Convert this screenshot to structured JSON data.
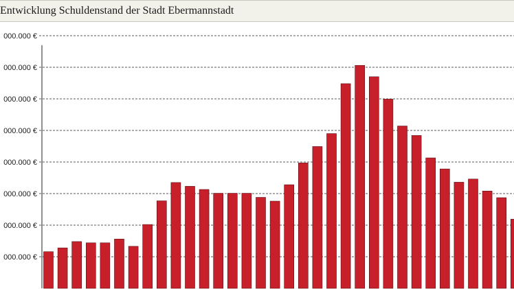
{
  "chart_data": {
    "type": "bar",
    "title": "Entwicklung Schuldenstand der Stadt Ebermannstadt",
    "xlabel": "",
    "ylabel": "",
    "y_tick_labels": [
      "000.000 €",
      "000.000 €",
      "000.000 €",
      "000.000 €",
      "000.000 €",
      "000.000 €",
      "000.000 €",
      "000.000 €"
    ],
    "ylim": [
      0,
      7.7
    ],
    "grid": true,
    "bar_color": "#c8202b",
    "values": [
      1.16,
      1.28,
      1.48,
      1.44,
      1.44,
      1.56,
      1.33,
      2.02,
      2.77,
      3.35,
      3.23,
      3.13,
      3.01,
      3.01,
      3.01,
      2.88,
      2.76,
      3.28,
      3.97,
      4.49,
      4.9,
      6.48,
      7.06,
      6.7,
      5.99,
      5.14,
      4.84,
      4.13,
      3.78,
      3.36,
      3.46,
      3.08,
      2.87,
      2.19
    ]
  }
}
